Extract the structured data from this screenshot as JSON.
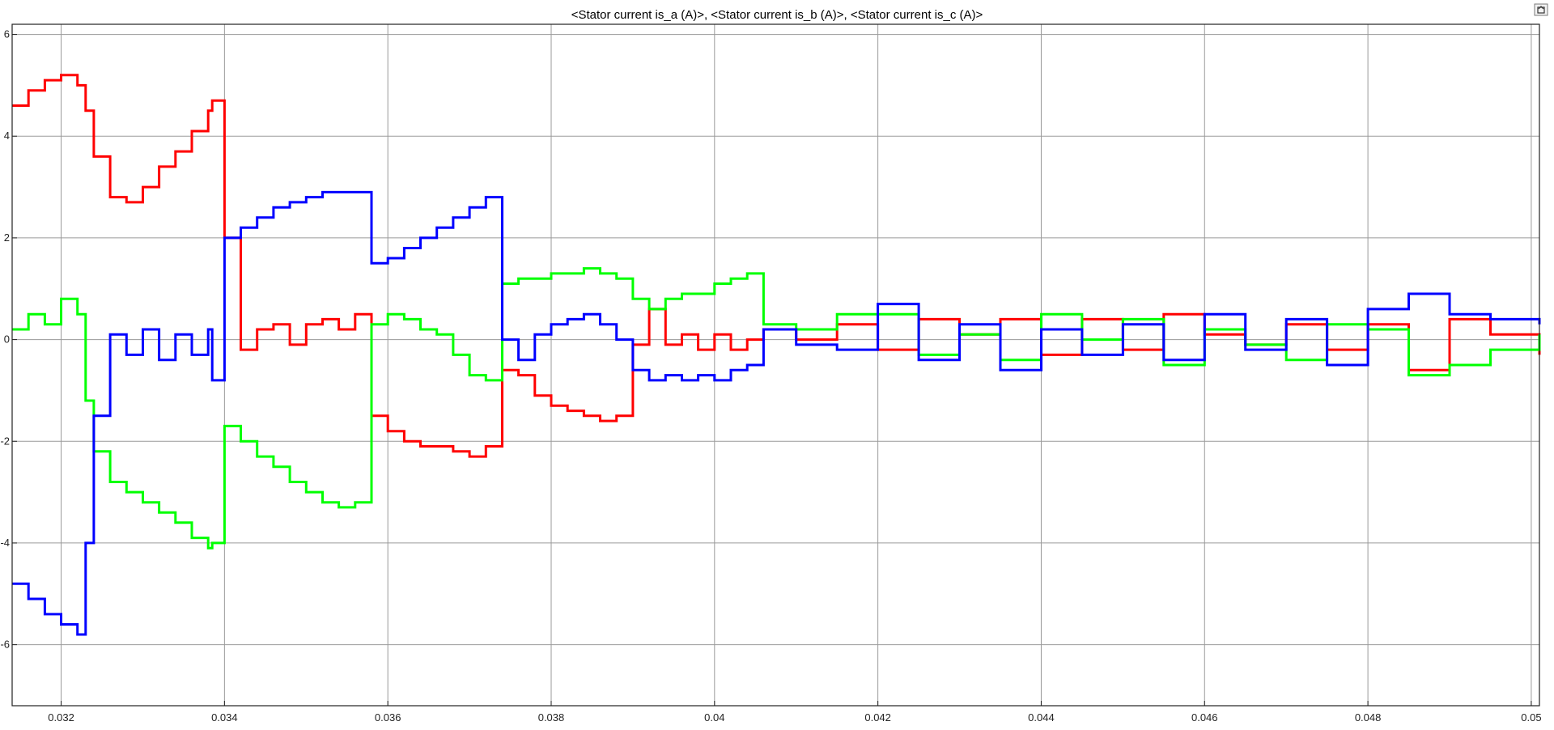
{
  "window": {
    "dock_icon": "undock-icon"
  },
  "chart_data": {
    "type": "line",
    "title": "<Stator current is_a (A)>, <Stator current is_b (A)>, <Stator current is_c (A)>",
    "xlabel": "",
    "ylabel": "",
    "xlim": [
      0.0314,
      0.0501
    ],
    "ylim": [
      -7.2,
      6.2
    ],
    "grid": true,
    "legend": "none",
    "x_ticks": [
      0.032,
      0.034,
      0.036,
      0.038,
      0.04,
      0.042,
      0.044,
      0.046,
      0.048,
      0.05
    ],
    "x_tick_labels": [
      "0.032",
      "0.034",
      "0.036",
      "0.038",
      "0.04",
      "0.042",
      "0.044",
      "0.046",
      "0.048",
      "0.05"
    ],
    "y_ticks": [
      6,
      4,
      2,
      0,
      -2,
      -4,
      -6
    ],
    "y_tick_labels": [
      "6",
      "4",
      "2",
      "0",
      "-2",
      "-4",
      "-6"
    ],
    "series": [
      {
        "color": "#ff0000",
        "x": [
          0.0314,
          0.0316,
          0.0318,
          0.032,
          0.0322,
          0.0323,
          0.0324,
          0.0326,
          0.0328,
          0.033,
          0.0332,
          0.0334,
          0.0336,
          0.0338,
          0.03385,
          0.034,
          0.0342,
          0.0344,
          0.0346,
          0.0348,
          0.035,
          0.0352,
          0.0354,
          0.0356,
          0.0358,
          0.036,
          0.0362,
          0.0364,
          0.0366,
          0.0368,
          0.037,
          0.0372,
          0.0374,
          0.0376,
          0.0378,
          0.038,
          0.0382,
          0.0384,
          0.0386,
          0.0388,
          0.039,
          0.0392,
          0.0394,
          0.0396,
          0.0398,
          0.04,
          0.0402,
          0.0404,
          0.0406,
          0.041,
          0.0415,
          0.042,
          0.0425,
          0.043,
          0.0435,
          0.044,
          0.0445,
          0.045,
          0.0455,
          0.046,
          0.0465,
          0.047,
          0.0475,
          0.048,
          0.0485,
          0.049,
          0.0495,
          0.0501
        ],
        "y": [
          4.6,
          4.9,
          5.1,
          5.2,
          5.0,
          4.5,
          3.6,
          2.8,
          2.7,
          3.0,
          3.4,
          3.7,
          4.1,
          4.5,
          4.7,
          2.0,
          -0.2,
          0.2,
          0.3,
          -0.1,
          0.3,
          0.4,
          0.2,
          0.5,
          -1.5,
          -1.8,
          -2.0,
          -2.1,
          -2.1,
          -2.2,
          -2.3,
          -2.1,
          -0.6,
          -0.7,
          -1.1,
          -1.3,
          -1.4,
          -1.5,
          -1.6,
          -1.5,
          -0.1,
          0.6,
          -0.1,
          0.1,
          -0.2,
          0.1,
          -0.2,
          0.0,
          0.2,
          0.0,
          0.3,
          -0.2,
          0.4,
          0.1,
          0.4,
          -0.3,
          0.4,
          -0.2,
          0.5,
          0.1,
          -0.1,
          0.3,
          -0.2,
          0.3,
          -0.6,
          0.4,
          0.1,
          -0.3
        ]
      },
      {
        "color": "#00ff00",
        "x": [
          0.0314,
          0.0316,
          0.0318,
          0.032,
          0.0322,
          0.0323,
          0.0324,
          0.0326,
          0.0328,
          0.033,
          0.0332,
          0.0334,
          0.0336,
          0.0338,
          0.03385,
          0.034,
          0.0342,
          0.0344,
          0.0346,
          0.0348,
          0.035,
          0.0352,
          0.0354,
          0.0356,
          0.0358,
          0.036,
          0.0362,
          0.0364,
          0.0366,
          0.0368,
          0.037,
          0.0372,
          0.0374,
          0.0376,
          0.0378,
          0.038,
          0.0382,
          0.0384,
          0.0386,
          0.0388,
          0.039,
          0.0392,
          0.0394,
          0.0396,
          0.0398,
          0.04,
          0.0402,
          0.0404,
          0.0406,
          0.041,
          0.0415,
          0.042,
          0.0425,
          0.043,
          0.0435,
          0.044,
          0.0445,
          0.045,
          0.0455,
          0.046,
          0.0465,
          0.047,
          0.0475,
          0.048,
          0.0485,
          0.049,
          0.0495,
          0.0501
        ],
        "y": [
          0.2,
          0.5,
          0.3,
          0.8,
          0.5,
          -1.2,
          -2.2,
          -2.8,
          -3.0,
          -3.2,
          -3.4,
          -3.6,
          -3.9,
          -4.1,
          -4.0,
          -1.7,
          -2.0,
          -2.3,
          -2.5,
          -2.8,
          -3.0,
          -3.2,
          -3.3,
          -3.2,
          0.3,
          0.5,
          0.4,
          0.2,
          0.1,
          -0.3,
          -0.7,
          -0.8,
          1.1,
          1.2,
          1.2,
          1.3,
          1.3,
          1.4,
          1.3,
          1.2,
          0.8,
          0.6,
          0.8,
          0.9,
          0.9,
          1.1,
          1.2,
          1.3,
          0.3,
          0.2,
          0.5,
          0.5,
          -0.3,
          0.1,
          -0.4,
          0.5,
          0.0,
          0.4,
          -0.5,
          0.2,
          -0.1,
          -0.4,
          0.3,
          0.2,
          -0.7,
          -0.5,
          -0.2,
          0.1
        ]
      },
      {
        "color": "#0000ff",
        "x": [
          0.0314,
          0.0316,
          0.0318,
          0.032,
          0.0322,
          0.0323,
          0.0324,
          0.0326,
          0.0328,
          0.033,
          0.0332,
          0.0334,
          0.0336,
          0.0338,
          0.03385,
          0.034,
          0.0342,
          0.0344,
          0.0346,
          0.0348,
          0.035,
          0.0352,
          0.0354,
          0.0356,
          0.0358,
          0.036,
          0.0362,
          0.0364,
          0.0366,
          0.0368,
          0.037,
          0.0372,
          0.0374,
          0.0376,
          0.0378,
          0.038,
          0.0382,
          0.0384,
          0.0386,
          0.0388,
          0.039,
          0.0392,
          0.0394,
          0.0396,
          0.0398,
          0.04,
          0.0402,
          0.0404,
          0.0406,
          0.041,
          0.0415,
          0.042,
          0.0425,
          0.043,
          0.0435,
          0.044,
          0.0445,
          0.045,
          0.0455,
          0.046,
          0.0465,
          0.047,
          0.0475,
          0.048,
          0.0485,
          0.049,
          0.0495,
          0.0501
        ],
        "y": [
          -4.8,
          -5.1,
          -5.4,
          -5.6,
          -5.8,
          -4.0,
          -1.5,
          0.1,
          -0.3,
          0.2,
          -0.4,
          0.1,
          -0.3,
          0.2,
          -0.8,
          2.0,
          2.2,
          2.4,
          2.6,
          2.7,
          2.8,
          2.9,
          2.9,
          2.9,
          1.5,
          1.6,
          1.8,
          2.0,
          2.2,
          2.4,
          2.6,
          2.8,
          0.0,
          -0.4,
          0.1,
          0.3,
          0.4,
          0.5,
          0.3,
          0.0,
          -0.6,
          -0.8,
          -0.7,
          -0.8,
          -0.7,
          -0.8,
          -0.6,
          -0.5,
          0.2,
          -0.1,
          -0.2,
          0.7,
          -0.4,
          0.3,
          -0.6,
          0.2,
          -0.3,
          0.3,
          -0.4,
          0.5,
          -0.2,
          0.4,
          -0.5,
          0.6,
          0.9,
          0.5,
          0.4,
          0.3
        ]
      }
    ]
  }
}
